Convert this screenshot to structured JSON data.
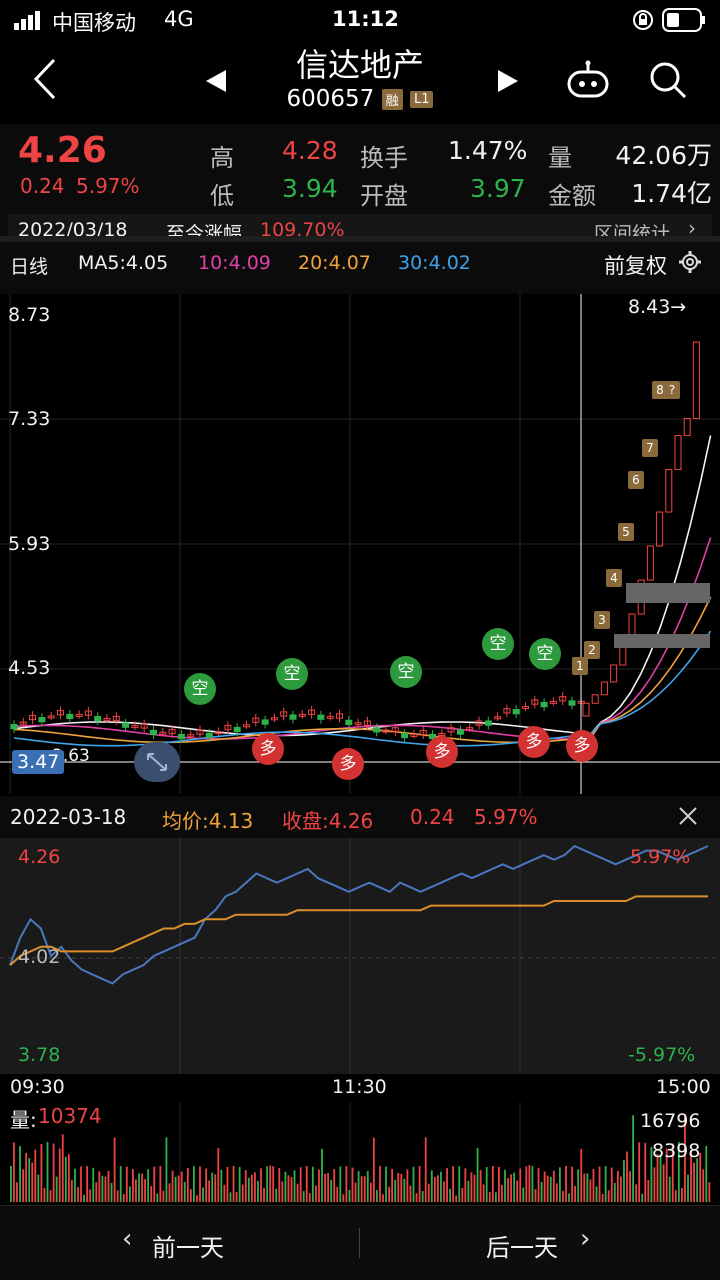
{
  "status_bar": {
    "carrier": "中国移动",
    "network": "4G",
    "time": "11:12"
  },
  "header": {
    "stock_name": "信达地产",
    "stock_code": "600657",
    "tag_margin": "融",
    "tag_level": "L1"
  },
  "quote": {
    "price": "4.26",
    "change": "0.24",
    "change_pct": "5.97%",
    "high_label": "高",
    "high": "4.28",
    "low_label": "低",
    "low": "3.94",
    "turnover_label": "换手",
    "turnover": "1.47%",
    "open_label": "开盘",
    "open": "3.97",
    "volume_label": "量",
    "volume": "42.06万",
    "amount_label": "金额",
    "amount": "1.74亿",
    "date": "2022/03/18",
    "since_label": "至今涨幅",
    "since_pct": "109.70%",
    "interval_label": "区间统计"
  },
  "kline": {
    "period": "日线",
    "ma5": "MA5:4.05",
    "ma10": "10:4.09",
    "ma20": "20:4.07",
    "ma30": "30:4.02",
    "adjust_label": "前复权",
    "y_labels": [
      "8.73",
      "7.33",
      "5.93",
      "4.53"
    ],
    "max_label": "8.43→",
    "cursor_price": "3.47",
    "low_label": "3.63",
    "signal_long": "多",
    "signal_short": "空",
    "day_numbers": [
      "1",
      "2",
      "3",
      "4",
      "5",
      "6",
      "7",
      "8",
      "?"
    ]
  },
  "intraday": {
    "date": "2022-03-18",
    "avg_label": "均价:4.13",
    "close_label": "收盘:4.26",
    "change": "0.24",
    "change_pct": "5.97%",
    "y_top": "4.26",
    "y_mid": "4.02",
    "y_bot": "3.78",
    "pct_top": "5.97%",
    "pct_bot": "-5.97%",
    "times": [
      "09:30",
      "11:30",
      "15:00"
    ],
    "series_price": [
      4.0,
      4.06,
      4.1,
      4.08,
      4.02,
      4.04,
      4.01,
      3.99,
      3.98,
      3.97,
      3.96,
      3.98,
      3.99,
      4.0,
      4.02,
      4.03,
      4.04,
      4.05,
      4.06,
      4.1,
      4.12,
      4.15,
      4.16,
      4.18,
      4.2,
      4.19,
      4.18,
      4.19,
      4.2,
      4.21,
      4.19,
      4.18,
      4.17,
      4.16,
      4.17,
      4.18,
      4.17,
      4.16,
      4.18,
      4.17,
      4.16,
      4.17,
      4.18,
      4.19,
      4.2,
      4.19,
      4.2,
      4.21,
      4.22,
      4.21,
      4.22,
      4.23,
      4.24,
      4.23,
      4.24,
      4.26,
      4.25,
      4.24,
      4.23,
      4.22,
      4.23,
      4.24,
      4.25,
      4.25,
      4.24,
      4.23,
      4.24,
      4.25,
      4.26
    ],
    "series_avg": [
      4.0,
      4.02,
      4.03,
      4.04,
      4.04,
      4.03,
      4.03,
      4.03,
      4.03,
      4.03,
      4.03,
      4.04,
      4.05,
      4.06,
      4.07,
      4.08,
      4.08,
      4.09,
      4.09,
      4.1,
      4.1,
      4.1,
      4.11,
      4.11,
      4.11,
      4.11,
      4.11,
      4.11,
      4.12,
      4.12,
      4.12,
      4.12,
      4.12,
      4.12,
      4.12,
      4.12,
      4.12,
      4.12,
      4.12,
      4.12,
      4.12,
      4.13,
      4.13,
      4.13,
      4.13,
      4.13,
      4.13,
      4.13,
      4.13,
      4.13,
      4.13,
      4.13,
      4.13,
      4.14,
      4.14,
      4.14,
      4.14,
      4.14,
      4.14,
      4.14,
      4.14,
      4.15,
      4.15,
      4.15,
      4.15,
      4.15,
      4.15,
      4.15,
      4.15
    ]
  },
  "volume": {
    "label": "量:",
    "value": "10374",
    "y_top": "16796",
    "y_mid": "8398"
  },
  "footer": {
    "prev": "前一天",
    "next": "后一天"
  },
  "colors": {
    "up": "#ef4444",
    "down": "#2fb24c",
    "price_line": "#4a78c0",
    "avg_line": "#d98f2b"
  }
}
